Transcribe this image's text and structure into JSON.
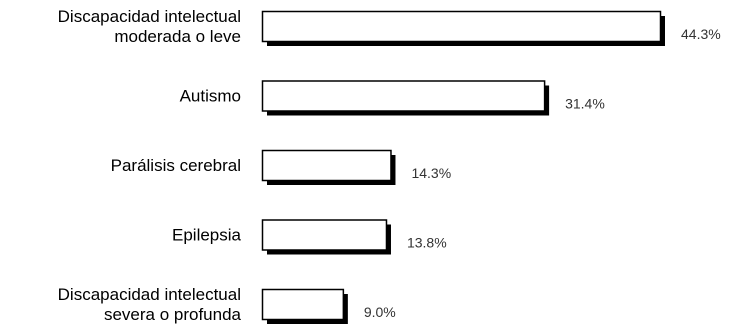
{
  "chart_data": {
    "type": "bar",
    "orientation": "horizontal",
    "categories": [
      [
        "Discapacidad intelectual",
        "moderada o leve"
      ],
      [
        "Autismo"
      ],
      [
        "Parálisis cerebral"
      ],
      [
        "Epilepsia"
      ],
      [
        "Discapacidad intelectual",
        "severa o profunda"
      ]
    ],
    "values": [
      44.3,
      31.4,
      14.3,
      13.8,
      9.0
    ],
    "value_labels": [
      "44.3%",
      "31.4%",
      "14.3%",
      "13.8%",
      "9.0%"
    ],
    "unit": "%",
    "xlim": [
      0,
      44.3
    ],
    "grid": false,
    "legend": "none",
    "colors": {
      "bar_fill": "#ffffff",
      "bar_stroke": "#000000",
      "bar_shadow": "#000000",
      "text": "#000000",
      "value_text": "#333333"
    }
  }
}
